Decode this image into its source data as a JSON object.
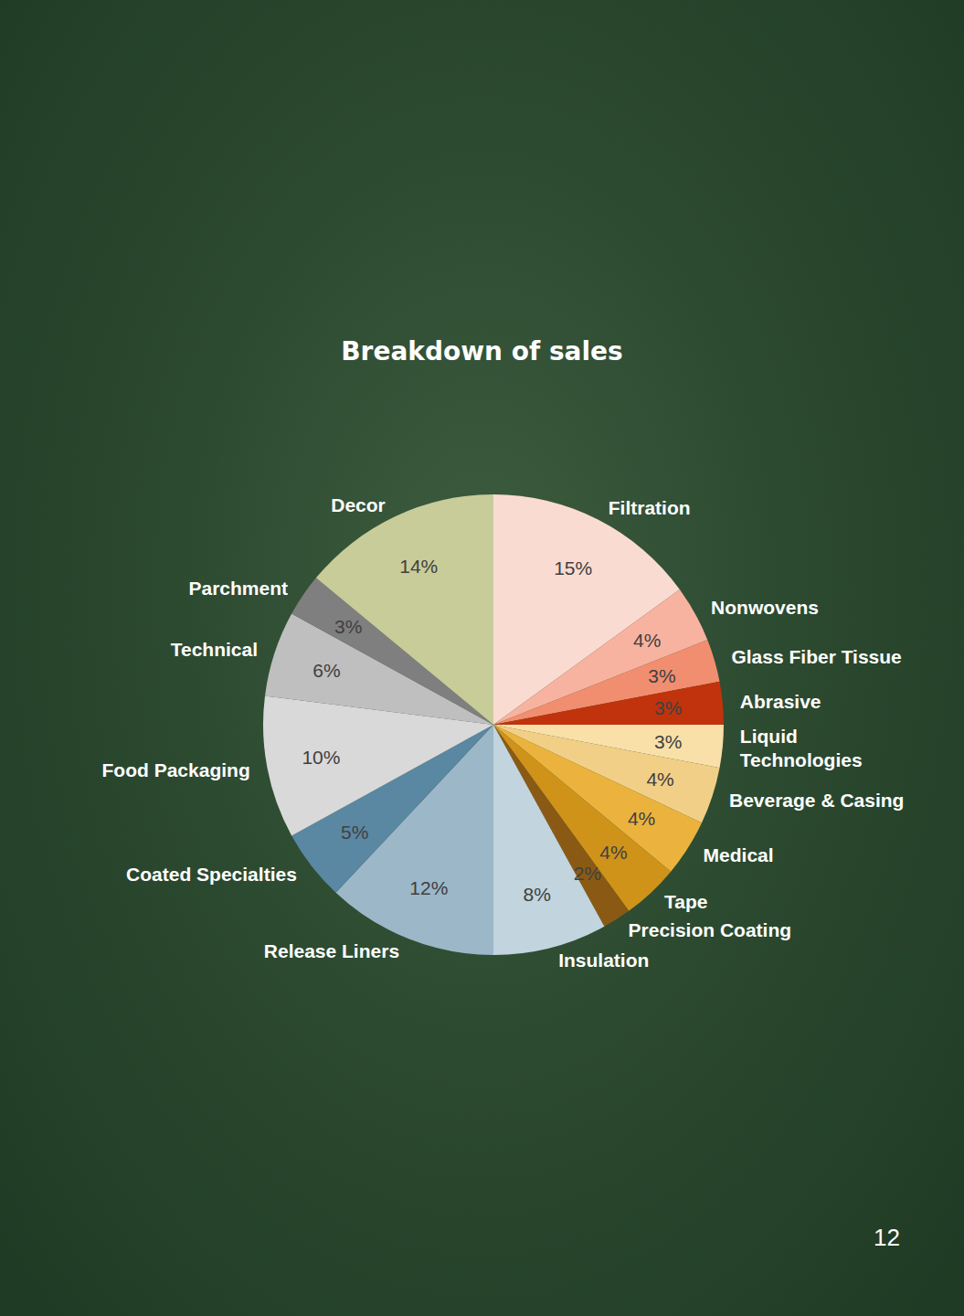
{
  "chart_data": {
    "type": "pie",
    "title": "Breakdown of sales",
    "categories": [
      "Filtration",
      "Nonwovens",
      "Glass Fiber Tissue",
      "Abrasive",
      "Liquid Technologies",
      "Beverage & Casing",
      "Medical",
      "Tape",
      "Precision Coating",
      "Insulation",
      "Release Liners",
      "Coated Specialties",
      "Food Packaging",
      "Technical",
      "Parchment",
      "Decor"
    ],
    "values": [
      15,
      4,
      3,
      3,
      3,
      4,
      4,
      4,
      2,
      8,
      12,
      5,
      10,
      6,
      3,
      14
    ],
    "value_labels": [
      "15%",
      "4%",
      "3%",
      "3%",
      "3%",
      "4%",
      "4%",
      "4%",
      "2%",
      "8%",
      "12%",
      "5%",
      "10%",
      "6%",
      "3%",
      "14%"
    ],
    "colors": [
      "#fadbd2",
      "#f8b3a0",
      "#f28e70",
      "#c0330d",
      "#f8e0a8",
      "#f2cf86",
      "#ebb33e",
      "#cf931a",
      "#8a5a14",
      "#c2d4de",
      "#9bb7c8",
      "#5a87a2",
      "#d9d9d9",
      "#bfbfbf",
      "#7f7f7f",
      "#c8cc99"
    ],
    "data_labels": true
  },
  "page_number": "12"
}
